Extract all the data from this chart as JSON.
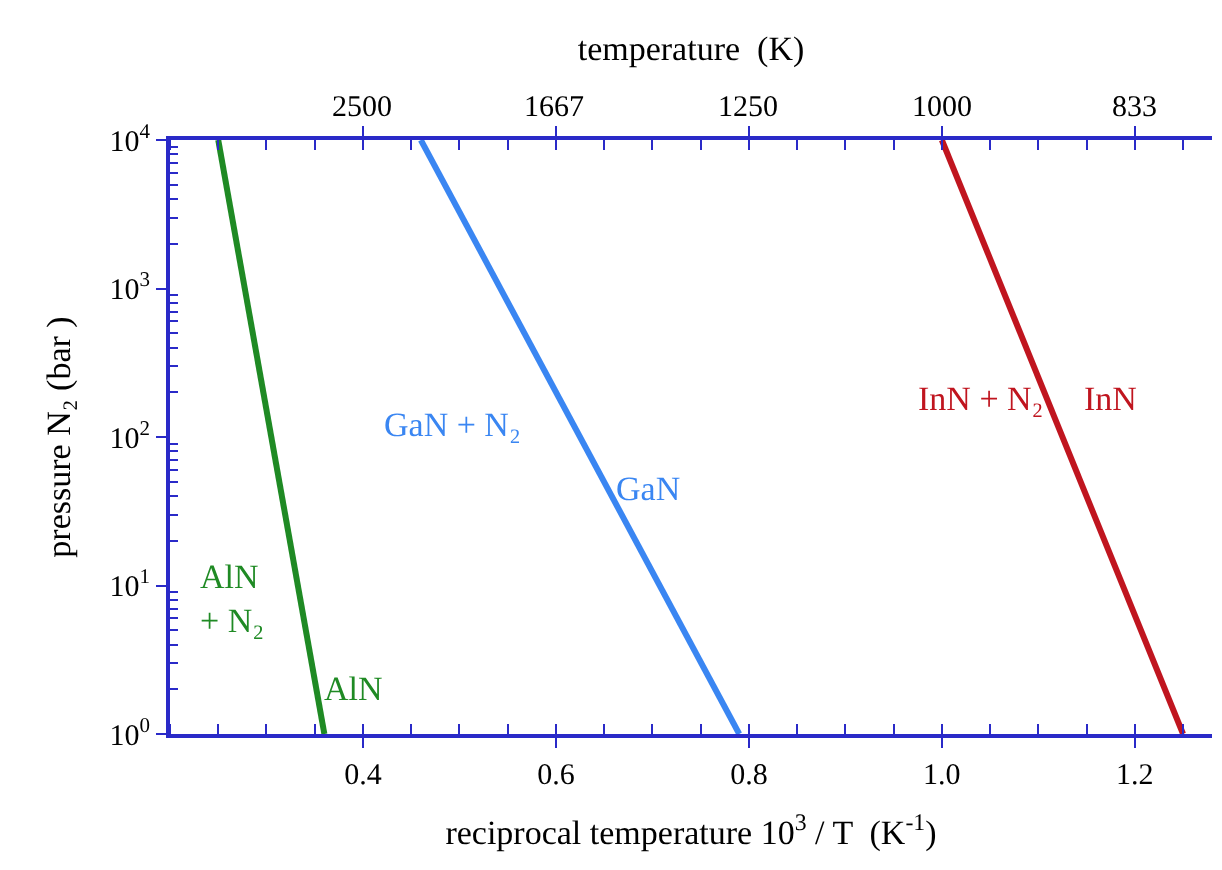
{
  "chart_data": {
    "type": "line",
    "xlabel": "reciprocal temperature 10$^{3}$ / T  (K$^{-1}$)",
    "ylabel": "pressure N₂ (bar )",
    "x2label": "temperature  (K)",
    "xlim": [
      0.2,
      1.28
    ],
    "xticks": [
      0.4,
      0.6,
      0.8,
      {
        "value": 1.0,
        "label": "1.0"
      },
      1.2
    ],
    "ylim": [
      1,
      10000
    ],
    "yticks": [
      {
        "value": 1,
        "label": "10$^{0}$"
      },
      {
        "value": 10,
        "label": "10$^{1}$"
      },
      {
        "value": 100,
        "label": "10$^{2}$"
      },
      {
        "value": 1000,
        "label": "10$^{3}$"
      },
      {
        "value": 10000,
        "label": "10$^{4}$"
      }
    ],
    "log": "y",
    "marker": "none",
    "line_style": "solid",
    "series": [
      {
        "color": "#1f8a24",
        "x": [
          0.25,
          0.36
        ],
        "values": [
          10000,
          1
        ]
      },
      {
        "color": "#3a86f2",
        "x": [
          0.46,
          0.79
        ],
        "values": [
          10000,
          1
        ]
      },
      {
        "color": "#c0151f",
        "x": [
          1.0,
          1.25
        ],
        "values": [
          10000,
          1
        ]
      }
    ],
    "annotations": [
      "2500",
      "1667",
      "1250",
      "1000",
      "833",
      "AlN\n+ N₂",
      "AlN",
      "GaN + N₂",
      "GaN",
      "InN + N₂",
      "InN"
    ]
  }
}
